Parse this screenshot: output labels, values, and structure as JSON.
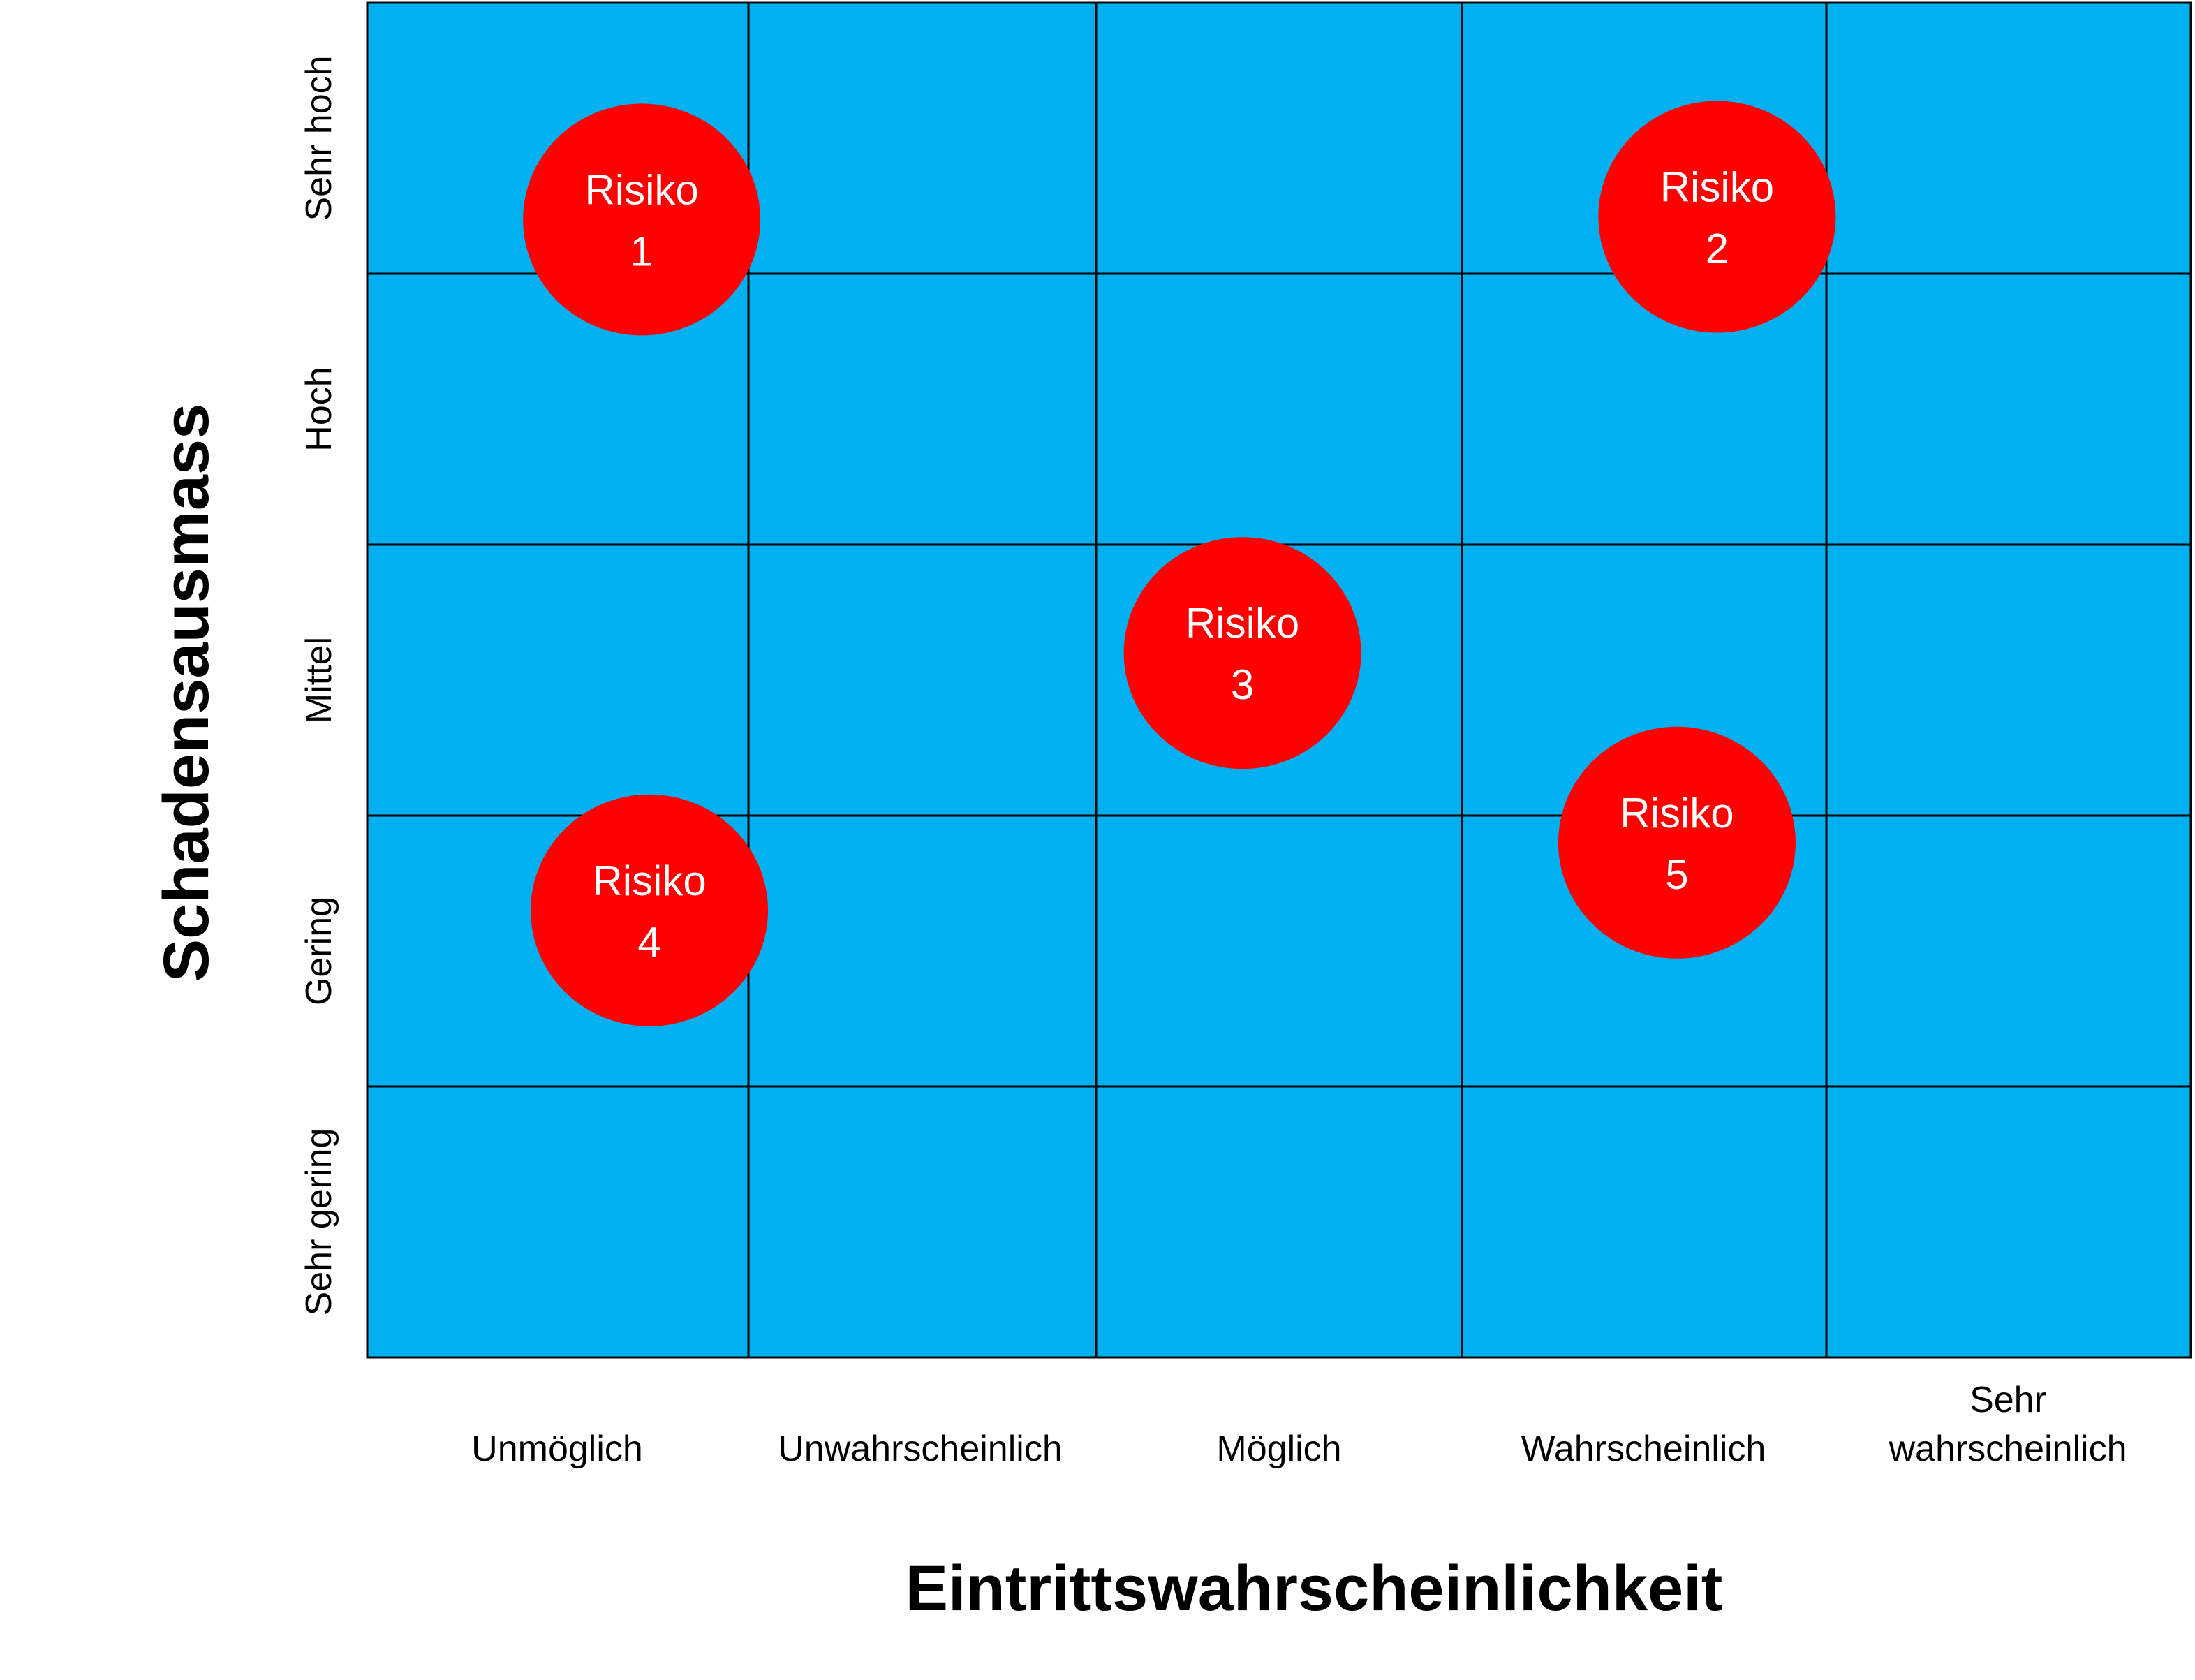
{
  "colors": {
    "cell_fill": "#00B0F0",
    "grid_line": "#000000",
    "risk_fill": "#FF0000",
    "risk_text": "#FFFFFF"
  },
  "axes": {
    "x_title": "Eintrittswahrscheinlichkeit",
    "y_title": "Schadensausmass",
    "x_categories": [
      [
        "Unmöglich"
      ],
      [
        "Unwahrscheinlich"
      ],
      [
        "Möglich"
      ],
      [
        "Wahrscheinlich"
      ],
      [
        "Sehr",
        "wahrscheinlich"
      ]
    ],
    "y_categories": [
      "Sehr hoch",
      "Hoch",
      "Mittel",
      "Gering",
      "Sehr gering"
    ]
  },
  "risks": [
    {
      "label": "Risiko",
      "number": "1",
      "probability_col": 0.72,
      "impact_row": 0.8
    },
    {
      "label": "Risiko",
      "number": "2",
      "probability_col": 3.7,
      "impact_row": 0.79
    },
    {
      "label": "Risiko",
      "number": "3",
      "probability_col": 2.4,
      "impact_row": 2.4
    },
    {
      "label": "Risiko",
      "number": "4",
      "probability_col": 0.74,
      "impact_row": 3.35
    },
    {
      "label": "Risiko",
      "number": "5",
      "probability_col": 3.59,
      "impact_row": 3.1
    }
  ]
}
